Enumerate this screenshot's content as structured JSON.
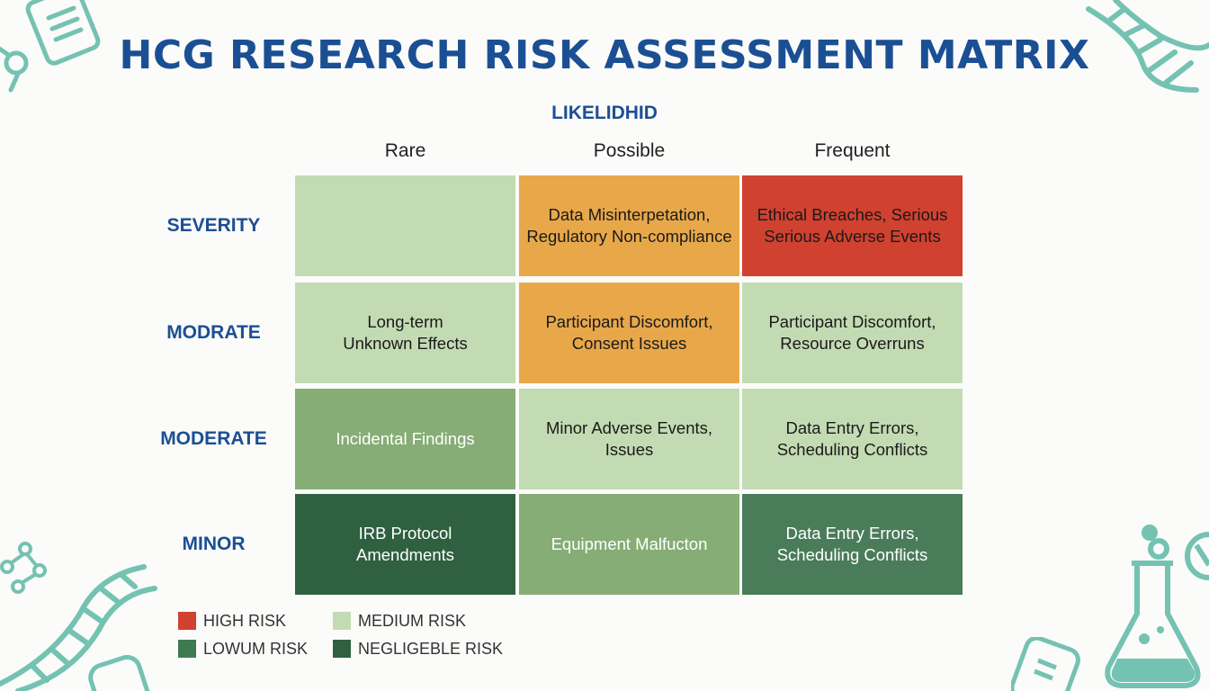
{
  "title": "HCG RESEARCH RISK ASSESSMENT MATRIX",
  "axis_label": "LIKELIDHID",
  "columns": [
    "Rare",
    "Possible",
    "Frequent"
  ],
  "rows": [
    {
      "label": "SEVERITY",
      "cells": [
        "",
        "Data Misinterpetation,\nRegulatory Non-compliance",
        "Ethical Breaches, Serious\nSerious Adverse Events"
      ]
    },
    {
      "label": "MODRATE",
      "cells": [
        "Long-term\nUnknown Effects",
        "Participant Discomfort,\nConsent Issues",
        "Participant Discomfort,\nResource Overruns"
      ]
    },
    {
      "label": "MODERATE",
      "cells": [
        "Incidental Findings",
        "Minor Adverse Events,\nIssues",
        "Data Entry Errors,\nScheduling Conflicts"
      ]
    },
    {
      "label": "MINOR",
      "cells": [
        "IRB Protocol\nAmendments",
        "Equipment Malfucton",
        "Data Entry Errors,\nScheduling Conflicts"
      ]
    }
  ],
  "cell_colors": [
    [
      "#c3dbb3",
      "#e8a84a",
      "#d14130"
    ],
    [
      "#c3dbb3",
      "#e8a84a",
      "#c3dbb3"
    ],
    [
      "#86ad75",
      "#c3dbb3",
      "#c3dbb3"
    ],
    [
      "#2f6040",
      "#86ad75",
      "#4a7c5a"
    ]
  ],
  "cell_text_colors": [
    [
      "#1a1a1a",
      "#1a1a1a",
      "#1a1a1a"
    ],
    [
      "#1a1a1a",
      "#1a1a1a",
      "#1a1a1a"
    ],
    [
      "#ffffff",
      "#1a1a1a",
      "#1a1a1a"
    ],
    [
      "#ffffff",
      "#ffffff",
      "#ffffff"
    ]
  ],
  "legend": [
    {
      "label": "HIGH RISK",
      "color": "#d14130"
    },
    {
      "label": "MEDIUM RISK",
      "color": "#c3dbb3"
    },
    {
      "label": "LOWUM RISK",
      "color": "#3f7a4f"
    },
    {
      "label": "NEGLIGEBLE RISK",
      "color": "#2f6040"
    }
  ],
  "decor": {
    "accent": "#74c2b2"
  }
}
